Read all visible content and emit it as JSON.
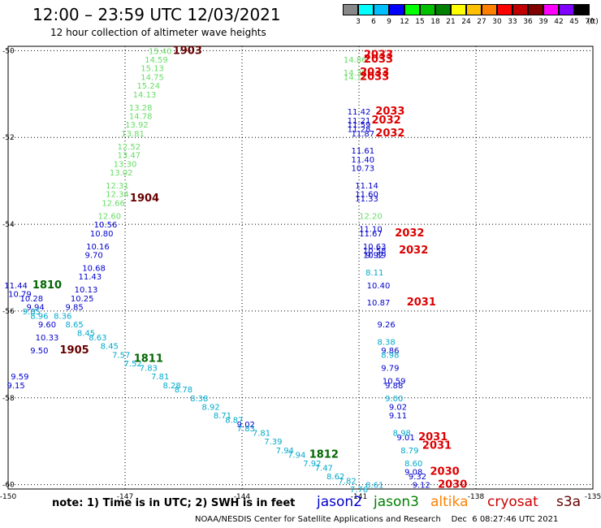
{
  "header": {
    "title": "12:00 – 23:59 UTC 12/03/2021",
    "subtitle": "12 hour collection of altimeter wave heights"
  },
  "color_scale": {
    "unit": "(ft)",
    "colors": [
      "#888888",
      "#00ffff",
      "#00bfff",
      "#0000ff",
      "#00ff00",
      "#00c000",
      "#008000",
      "#ffff00",
      "#ffc000",
      "#ff8000",
      "#ff0000",
      "#c00000",
      "#800000",
      "#ff00ff",
      "#8000ff",
      "#000000"
    ],
    "labels": [
      "3",
      "6",
      "9",
      "12",
      "15",
      "18",
      "21",
      "24",
      "27",
      "30",
      "33",
      "36",
      "39",
      "42",
      "45",
      "70"
    ]
  },
  "note": "note:  1) Time is in UTC;  2) SWH is in feet",
  "satellites": [
    {
      "name": "jason2",
      "color": "#0000cc"
    },
    {
      "name": "jason3",
      "color": "#008000"
    },
    {
      "name": "altika",
      "color": "#ff8000"
    },
    {
      "name": "cryosat",
      "color": "#cc0000"
    },
    {
      "name": "s3a",
      "color": "#660000"
    }
  ],
  "footer": "NOAA/NESDIS Center for Satellite Applications and Research    Dec  6 08:27:46 UTC 2021",
  "chart_data": {
    "type": "scatter",
    "x_axis": {
      "range": [
        -150,
        -135
      ],
      "ticks": [
        -150,
        -147,
        -144,
        -141,
        -138,
        -135
      ],
      "tick_labels": [
        "-150",
        "-147",
        "-144",
        "-141",
        "-138",
        "-135"
      ]
    },
    "y_axis": {
      "range": [
        -60.1,
        -49.9
      ],
      "ticks": [
        -50,
        -52,
        -54,
        -56,
        -58,
        -60
      ],
      "tick_labels": [
        "-50",
        "-52",
        "-54",
        "-56",
        "-58",
        "-60"
      ]
    },
    "grid": "dotted",
    "series": [
      {
        "color": "#66dd66",
        "points": [
          {
            "x": -146.1,
            "y": -50.0,
            "v": "15.40"
          },
          {
            "x": -146.2,
            "y": -50.2,
            "v": "14.59"
          },
          {
            "x": -146.3,
            "y": -50.4,
            "v": "15.13"
          },
          {
            "x": -146.3,
            "y": -50.6,
            "v": "14.75"
          },
          {
            "x": -146.4,
            "y": -50.8,
            "v": "15.24"
          },
          {
            "x": -146.5,
            "y": -51.0,
            "v": "14.13"
          },
          {
            "x": -146.6,
            "y": -51.3,
            "v": "13.28"
          },
          {
            "x": -146.6,
            "y": -51.5,
            "v": "14.78"
          },
          {
            "x": -146.7,
            "y": -51.7,
            "v": "13.92"
          },
          {
            "x": -146.8,
            "y": -51.9,
            "v": "13.81"
          },
          {
            "x": -146.9,
            "y": -52.2,
            "v": "12.52"
          },
          {
            "x": -146.9,
            "y": -52.4,
            "v": "13.47"
          },
          {
            "x": -147.0,
            "y": -52.6,
            "v": "13.30"
          },
          {
            "x": -147.1,
            "y": -52.8,
            "v": "13.02"
          },
          {
            "x": -147.2,
            "y": -53.1,
            "v": "12.31"
          },
          {
            "x": -147.2,
            "y": -53.3,
            "v": "12.34"
          },
          {
            "x": -147.3,
            "y": -53.5,
            "v": "12.66"
          },
          {
            "x": -147.4,
            "y": -53.8,
            "v": "12.60"
          },
          {
            "x": -141.1,
            "y": -50.2,
            "v": "14.86"
          },
          {
            "x": -141.1,
            "y": -50.5,
            "v": "14.30"
          },
          {
            "x": -141.1,
            "y": -50.6,
            "v": "14.17"
          },
          {
            "x": -140.7,
            "y": -53.8,
            "v": "12.20"
          }
        ]
      },
      {
        "color": "#0000cc",
        "points": [
          {
            "x": -147.5,
            "y": -54.0,
            "v": "10.56"
          },
          {
            "x": -147.6,
            "y": -54.2,
            "v": "10.80"
          },
          {
            "x": -147.7,
            "y": -54.5,
            "v": "10.16"
          },
          {
            "x": -147.8,
            "y": -54.7,
            "v": "9.70"
          },
          {
            "x": -147.8,
            "y": -55.0,
            "v": "10.68"
          },
          {
            "x": -147.9,
            "y": -55.2,
            "v": "11.43"
          },
          {
            "x": -148.0,
            "y": -55.5,
            "v": "10.13"
          },
          {
            "x": -148.1,
            "y": -55.7,
            "v": "10.25"
          },
          {
            "x": -148.3,
            "y": -55.9,
            "v": "9.85"
          },
          {
            "x": -149.8,
            "y": -55.4,
            "v": "11.44"
          },
          {
            "x": -149.7,
            "y": -55.6,
            "v": "10.79"
          },
          {
            "x": -149.4,
            "y": -55.7,
            "v": "10.28"
          },
          {
            "x": -149.3,
            "y": -55.9,
            "v": "9.94"
          },
          {
            "x": -149.0,
            "y": -56.3,
            "v": "9.60"
          },
          {
            "x": -149.0,
            "y": -56.6,
            "v": "10.33"
          },
          {
            "x": -149.2,
            "y": -56.9,
            "v": "9.50"
          },
          {
            "x": -149.7,
            "y": -57.5,
            "v": "9.59"
          },
          {
            "x": -149.8,
            "y": -57.7,
            "v": "9.15"
          },
          {
            "x": -141.0,
            "y": -51.4,
            "v": "11.42"
          },
          {
            "x": -141.0,
            "y": -51.6,
            "v": "11.21"
          },
          {
            "x": -141.0,
            "y": -51.7,
            "v": "11.59"
          },
          {
            "x": -141.0,
            "y": -51.8,
            "v": "11.28"
          },
          {
            "x": -140.9,
            "y": -51.9,
            "v": "11.87"
          },
          {
            "x": -140.9,
            "y": -52.3,
            "v": "11.61"
          },
          {
            "x": -140.9,
            "y": -52.5,
            "v": "11.40"
          },
          {
            "x": -140.9,
            "y": -52.7,
            "v": "10.73"
          },
          {
            "x": -140.8,
            "y": -53.1,
            "v": "11.14"
          },
          {
            "x": -140.8,
            "y": -53.3,
            "v": "11.60"
          },
          {
            "x": -140.8,
            "y": -53.4,
            "v": "11.33"
          },
          {
            "x": -140.7,
            "y": -54.1,
            "v": "11.10"
          },
          {
            "x": -140.7,
            "y": -54.2,
            "v": "11.67"
          },
          {
            "x": -140.6,
            "y": -54.5,
            "v": "10.63"
          },
          {
            "x": -140.6,
            "y": -54.6,
            "v": "10.58"
          },
          {
            "x": -140.6,
            "y": -54.7,
            "v": "10.39"
          },
          {
            "x": -140.6,
            "y": -54.7,
            "v": "9.92"
          },
          {
            "x": -140.5,
            "y": -55.4,
            "v": "10.40"
          },
          {
            "x": -140.5,
            "y": -55.8,
            "v": "10.87"
          },
          {
            "x": -140.3,
            "y": -56.3,
            "v": "9.26"
          },
          {
            "x": -140.2,
            "y": -56.9,
            "v": "9.86"
          },
          {
            "x": -140.2,
            "y": -57.3,
            "v": "9.79"
          },
          {
            "x": -140.1,
            "y": -57.6,
            "v": "10.59"
          },
          {
            "x": -140.1,
            "y": -57.7,
            "v": "9.88"
          },
          {
            "x": -140.0,
            "y": -58.2,
            "v": "9.02"
          },
          {
            "x": -140.0,
            "y": -58.4,
            "v": "9.11"
          },
          {
            "x": -139.8,
            "y": -58.9,
            "v": "9.01"
          },
          {
            "x": -139.6,
            "y": -59.7,
            "v": "9.08"
          },
          {
            "x": -139.5,
            "y": -59.8,
            "v": "9.32"
          },
          {
            "x": -139.4,
            "y": -60.0,
            "v": "9.12"
          },
          {
            "x": -143.9,
            "y": -58.6,
            "v": "9.02"
          }
        ]
      },
      {
        "color": "#00aacc",
        "points": [
          {
            "x": -149.4,
            "y": -56.0,
            "v": "9.85"
          },
          {
            "x": -149.2,
            "y": -56.1,
            "v": "8.96"
          },
          {
            "x": -148.6,
            "y": -56.1,
            "v": "8.36"
          },
          {
            "x": -148.3,
            "y": -56.3,
            "v": "8.65"
          },
          {
            "x": -148.0,
            "y": -56.5,
            "v": "8.45"
          },
          {
            "x": -147.7,
            "y": -56.6,
            "v": "8.63"
          },
          {
            "x": -147.4,
            "y": -56.8,
            "v": "8.45"
          },
          {
            "x": -147.1,
            "y": -57.0,
            "v": "7.57"
          },
          {
            "x": -146.8,
            "y": -57.2,
            "v": "7.52"
          },
          {
            "x": -146.4,
            "y": -57.3,
            "v": "7.83"
          },
          {
            "x": -146.1,
            "y": -57.5,
            "v": "7.81"
          },
          {
            "x": -145.8,
            "y": -57.7,
            "v": "8.28"
          },
          {
            "x": -145.5,
            "y": -57.8,
            "v": "8.78"
          },
          {
            "x": -145.1,
            "y": -58.0,
            "v": "8.38"
          },
          {
            "x": -144.8,
            "y": -58.2,
            "v": "8.92"
          },
          {
            "x": -144.5,
            "y": -58.4,
            "v": "8.71"
          },
          {
            "x": -144.2,
            "y": -58.5,
            "v": "8.87"
          },
          {
            "x": -143.9,
            "y": -58.7,
            "v": "7.83"
          },
          {
            "x": -143.5,
            "y": -58.8,
            "v": "7.81"
          },
          {
            "x": -143.2,
            "y": -59.0,
            "v": "7.39"
          },
          {
            "x": -142.9,
            "y": -59.2,
            "v": "7.94"
          },
          {
            "x": -142.6,
            "y": -59.3,
            "v": "7.94"
          },
          {
            "x": -142.2,
            "y": -59.5,
            "v": "7.92"
          },
          {
            "x": -141.9,
            "y": -59.6,
            "v": "7.47"
          },
          {
            "x": -141.6,
            "y": -59.8,
            "v": "8.62"
          },
          {
            "x": -141.3,
            "y": -59.9,
            "v": "7.82"
          },
          {
            "x": -141.0,
            "y": -60.1,
            "v": "7.76"
          },
          {
            "x": -140.6,
            "y": -60.0,
            "v": "8.61"
          },
          {
            "x": -140.6,
            "y": -55.1,
            "v": "8.11"
          },
          {
            "x": -140.3,
            "y": -56.7,
            "v": "8.38"
          },
          {
            "x": -140.2,
            "y": -57.0,
            "v": "8.98"
          },
          {
            "x": -140.1,
            "y": -58.0,
            "v": "9.00"
          },
          {
            "x": -139.9,
            "y": -58.8,
            "v": "8.98"
          },
          {
            "x": -139.7,
            "y": -59.2,
            "v": "8.79"
          },
          {
            "x": -139.6,
            "y": -59.5,
            "v": "8.60"
          }
        ]
      },
      {
        "color": "#006600",
        "points": [
          {
            "x": -149.0,
            "y": -55.4,
            "v": "1810"
          },
          {
            "x": -146.4,
            "y": -57.1,
            "v": "1811"
          },
          {
            "x": -141.9,
            "y": -59.3,
            "v": "1812"
          }
        ]
      },
      {
        "color": "#660000",
        "points": [
          {
            "x": -145.4,
            "y": -50.0,
            "v": "1903"
          },
          {
            "x": -146.5,
            "y": -53.4,
            "v": "1904"
          },
          {
            "x": -148.3,
            "y": -56.9,
            "v": "1905"
          }
        ]
      },
      {
        "color": "#dd0000",
        "points": [
          {
            "x": -140.5,
            "y": -50.1,
            "v": "2033"
          },
          {
            "x": -140.5,
            "y": -50.2,
            "v": "2033"
          },
          {
            "x": -140.6,
            "y": -50.5,
            "v": "2033"
          },
          {
            "x": -140.6,
            "y": -50.6,
            "v": "2033"
          },
          {
            "x": -140.2,
            "y": -51.4,
            "v": "2033"
          },
          {
            "x": -140.3,
            "y": -51.6,
            "v": "2032"
          },
          {
            "x": -140.2,
            "y": -51.9,
            "v": "2032"
          },
          {
            "x": -139.7,
            "y": -54.2,
            "v": "2032"
          },
          {
            "x": -139.6,
            "y": -54.6,
            "v": "2032"
          },
          {
            "x": -139.4,
            "y": -55.8,
            "v": "2031"
          },
          {
            "x": -139.1,
            "y": -58.9,
            "v": "2031"
          },
          {
            "x": -139.0,
            "y": -59.1,
            "v": "2031"
          },
          {
            "x": -138.8,
            "y": -59.7,
            "v": "2030"
          },
          {
            "x": -138.6,
            "y": -60.0,
            "v": "2030"
          }
        ]
      }
    ]
  }
}
